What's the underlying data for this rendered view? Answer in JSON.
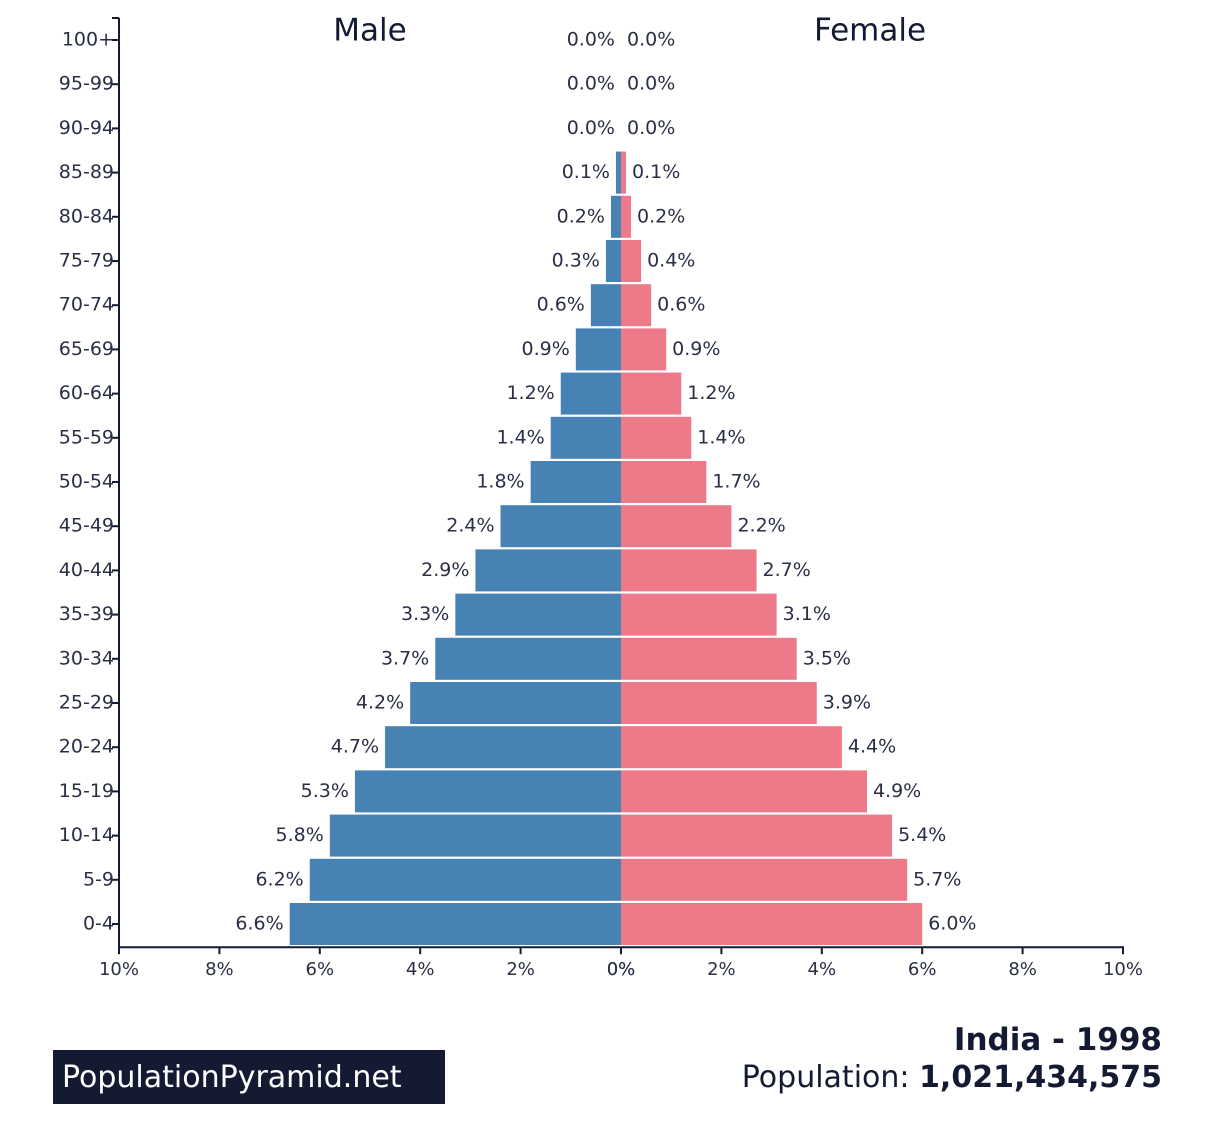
{
  "chart_data": {
    "type": "bar",
    "layout": "population-pyramid",
    "categories": [
      "100+",
      "95-99",
      "90-94",
      "85-89",
      "80-84",
      "75-79",
      "70-74",
      "65-69",
      "60-64",
      "55-59",
      "50-54",
      "45-49",
      "40-44",
      "35-39",
      "30-34",
      "25-29",
      "20-24",
      "15-19",
      "10-14",
      "5-9",
      "0-4"
    ],
    "series": [
      {
        "name": "Male",
        "color": "#4682b4",
        "values": [
          0.0,
          0.0,
          0.0,
          0.1,
          0.2,
          0.3,
          0.6,
          0.9,
          1.2,
          1.4,
          1.8,
          2.4,
          2.9,
          3.3,
          3.7,
          4.2,
          4.7,
          5.3,
          5.8,
          6.2,
          6.6
        ],
        "labels": [
          "0.0%",
          "0.0%",
          "0.0%",
          "0.1%",
          "0.2%",
          "0.3%",
          "0.6%",
          "0.9%",
          "1.2%",
          "1.4%",
          "1.8%",
          "2.4%",
          "2.9%",
          "3.3%",
          "3.7%",
          "4.2%",
          "4.7%",
          "5.3%",
          "5.8%",
          "6.2%",
          "6.6%"
        ]
      },
      {
        "name": "Female",
        "color": "#ee7989",
        "values": [
          0.0,
          0.0,
          0.0,
          0.1,
          0.2,
          0.4,
          0.6,
          0.9,
          1.2,
          1.4,
          1.7,
          2.2,
          2.7,
          3.1,
          3.5,
          3.9,
          4.4,
          4.9,
          5.4,
          5.7,
          6.0
        ],
        "labels": [
          "0.0%",
          "0.0%",
          "0.0%",
          "0.1%",
          "0.2%",
          "0.4%",
          "0.6%",
          "0.9%",
          "1.2%",
          "1.4%",
          "1.7%",
          "2.2%",
          "2.7%",
          "3.1%",
          "3.5%",
          "3.9%",
          "4.4%",
          "4.9%",
          "5.4%",
          "5.7%",
          "6.0%"
        ]
      }
    ],
    "xlim": [
      -10,
      10
    ],
    "x_ticks": [
      "10%",
      "8%",
      "6%",
      "4%",
      "2%",
      "0%",
      "0%",
      "2%",
      "4%",
      "6%",
      "8%",
      "10%"
    ],
    "grid": false
  },
  "branding": {
    "label": "PopulationPyramid.net"
  },
  "info": {
    "title": "India - 1998",
    "population_label": "Population:",
    "population_value": "1,021,434,575"
  },
  "colors": {
    "axis": "#151a33",
    "text": "#2a2f45",
    "brand_bg": "#151a33"
  }
}
